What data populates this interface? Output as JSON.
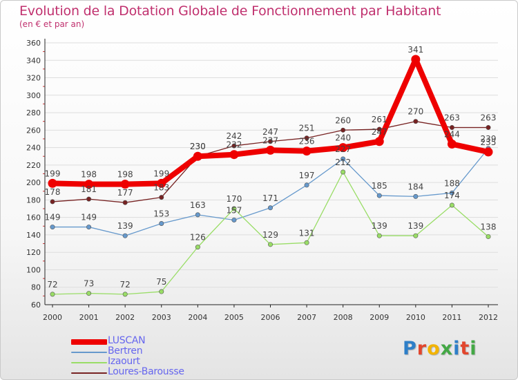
{
  "header": {
    "title": "Evolution de la Dotation Globale de Fonctionnement par Habitant",
    "subtitle": "(en € et par an)"
  },
  "brand": {
    "text": "Proxiti",
    "colors": [
      "#2e7fc8",
      "#e2462d",
      "#f2b300",
      "#43a845",
      "#2e7fc8",
      "#e2462d",
      "#43a845"
    ]
  },
  "chart_data": {
    "type": "line",
    "title": "Evolution de la Dotation Globale de Fonctionnement par Habitant",
    "subtitle": "(en € et par an)",
    "xlabel": "",
    "ylabel": "",
    "x": [
      "2000",
      "2001",
      "2002",
      "2003",
      "2004",
      "2005",
      "2006",
      "2007",
      "2008",
      "2009",
      "2010",
      "2011",
      "2012"
    ],
    "ylim": [
      60,
      360
    ],
    "yticks": [
      60,
      80,
      100,
      120,
      140,
      160,
      180,
      200,
      220,
      240,
      260,
      280,
      300,
      320,
      340,
      360
    ],
    "grid": "horizontal",
    "legend_position": "bottom-left",
    "series": [
      {
        "name": "Loures-Barousse",
        "color": "#772222",
        "values": [
          178,
          181,
          177,
          183,
          230,
          242,
          247,
          251,
          260,
          261,
          270,
          263,
          263
        ],
        "labels": [
          "178",
          "181",
          "177",
          "183",
          "230",
          "242",
          "247",
          "251",
          "260",
          "261",
          "270",
          "263",
          "263"
        ]
      },
      {
        "name": "Bertren",
        "color": "#6699cc",
        "values": [
          149,
          149,
          139,
          153,
          163,
          157,
          171,
          197,
          227,
          185,
          184,
          188,
          239
        ],
        "labels": [
          "149",
          "149",
          "139",
          "153",
          "163",
          "157",
          "171",
          "197",
          "227",
          "185",
          "184",
          "188",
          "239"
        ]
      },
      {
        "name": "Izaourt",
        "color": "#99dd66",
        "values": [
          72,
          73,
          72,
          75,
          126,
          170,
          129,
          131,
          212,
          139,
          139,
          174,
          138
        ],
        "labels": [
          "72",
          "73",
          "72",
          "75",
          "126",
          "170",
          "129",
          "131",
          "212",
          "139",
          "139",
          "174",
          "138"
        ]
      },
      {
        "name": "LUSCAN",
        "color": "#ee0000",
        "values": [
          199,
          198,
          198,
          199,
          230,
          232,
          237,
          236,
          240,
          247,
          341,
          244,
          235
        ],
        "labels": [
          "199",
          "198",
          "198",
          "199",
          "230",
          "232",
          "237",
          "236",
          "240",
          "247",
          "341",
          "244",
          "235"
        ]
      }
    ],
    "legend_order": [
      "LUSCAN",
      "Bertren",
      "Izaourt",
      "Loures-Barousse"
    ]
  }
}
